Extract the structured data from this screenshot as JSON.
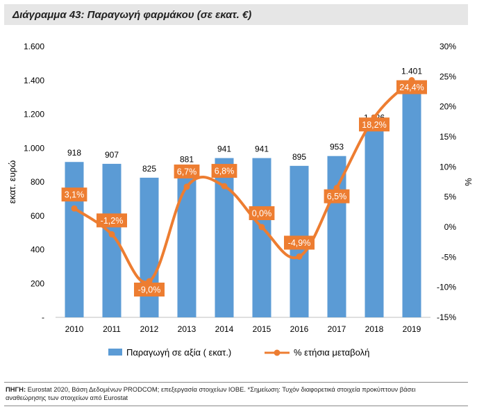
{
  "chart_data": {
    "type": "bar+line",
    "title": "Διάγραμμα 43: Παραγωγή φαρμάκου (σε εκατ. €)",
    "categories": [
      "2010",
      "2011",
      "2012",
      "2013",
      "2014",
      "2015",
      "2016",
      "2017",
      "2018",
      "2019"
    ],
    "series": [
      {
        "name": "Παραγωγή σε αξία (  εκατ.)",
        "type": "bar",
        "axis": "left",
        "color": "#5b9bd5",
        "values": [
          918,
          907,
          825,
          881,
          941,
          941,
          895,
          953,
          1126,
          1401
        ],
        "labels": [
          "918",
          "907",
          "825",
          "881",
          "941",
          "941",
          "895",
          "953",
          "1.126",
          "1.401"
        ]
      },
      {
        "name": "% ετήσια μεταβολή",
        "type": "line",
        "axis": "right",
        "color": "#ed7d31",
        "values": [
          3.1,
          -1.2,
          -9.0,
          6.7,
          6.8,
          0.0,
          -4.9,
          6.5,
          18.2,
          24.4
        ],
        "labels": [
          "3,1%",
          "-1,2%",
          "-9,0%",
          "6,7%",
          "6,8%",
          "0,0%",
          "-4,9%",
          "6,5%",
          "18,2%",
          "24,4%"
        ]
      }
    ],
    "ylabel": "εκατ. ευρώ",
    "y2label": "%",
    "ylim": [
      0,
      1600
    ],
    "y2lim": [
      -15,
      30
    ],
    "yticks": [
      "-",
      "200",
      "400",
      "600",
      "800",
      "1.000",
      "1.200",
      "1.400",
      "1.600"
    ],
    "y2ticks": [
      "-15%",
      "-10%",
      "-5%",
      "0%",
      "5%",
      "10%",
      "15%",
      "20%",
      "25%",
      "30%"
    ],
    "legend_position": "bottom"
  },
  "footer": {
    "source_label": "ΠΗΓΗ:",
    "source_text": " Eurostat 2020, Βάση Δεδομένων PRODCOM; επεξεργασία στοιχείων ΙΟΒΕ. *Σημείωση: Τυχόν διαφορετικά στοιχεία προκύπτουν βάσει αναθεώρησης των στοιχείων από Eurostat"
  }
}
